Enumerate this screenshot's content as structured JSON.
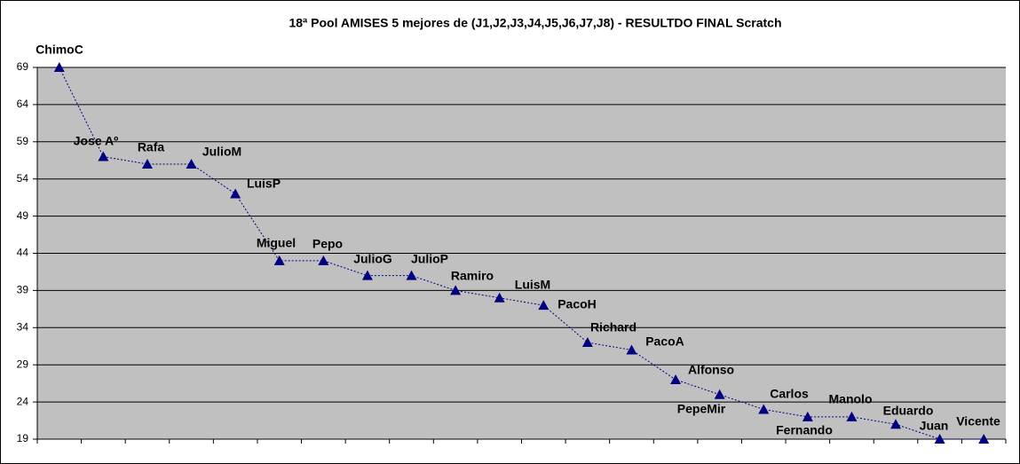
{
  "chart_data": {
    "type": "line",
    "title": "18ª Pool AMISES 5 mejores de (J1,J2,J3,J4,J5,J6,J7,J8)  - RESULTDO FINAL Scratch",
    "categories": [
      "ChimoC",
      "Jose Aº",
      "Rafa",
      "JulioM",
      "LuisP",
      "Miguel",
      "Pepo",
      "JulioG",
      "JulioP",
      "Ramiro",
      "LuisM",
      "PacoH",
      "Richard",
      "PacoA",
      "Alfonso",
      "PepeMir",
      "Carlos",
      "Fernando",
      "Manolo",
      "Eduardo",
      "Juan",
      "Vicente"
    ],
    "series": [
      {
        "name": "Scratch",
        "color": "#000080",
        "values": [
          69,
          57,
          56,
          56,
          52,
          43,
          43,
          41,
          41,
          39,
          38,
          37,
          32,
          31,
          27,
          25,
          23,
          22,
          22,
          21,
          19,
          19
        ]
      }
    ],
    "ylim": [
      19,
      69
    ],
    "yticks": [
      19,
      24,
      29,
      34,
      39,
      44,
      49,
      54,
      59,
      64,
      69
    ],
    "grid": true,
    "plot_background": "#c0c0c0"
  }
}
